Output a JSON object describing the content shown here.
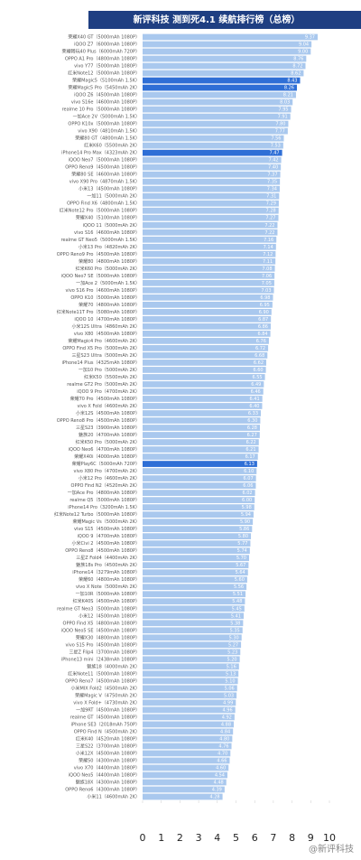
{
  "chart_data": {
    "type": "barh",
    "title": "新评科技 测到死4.1 续航排行榜（总榜）",
    "watermark": "@新评科技",
    "categories": [
      "荣耀X40 GT（5000mAh 1080P）",
      "iQOO Z7（6000mAh 1080P）",
      "荣耀畅玩40 Plus（6000mAh 720P）",
      "OPPO A1 Pro（4800mAh 1080P）",
      "vivo Y77（5000mAh 1080P）",
      "红米Note12（5000mAh 1080P）",
      "荣耀Magic5（5100mAh 1.5K）",
      "荣耀Magic5 Pro（5450mAh 2K）",
      "iQOO Z6（4500mAh 1080P）",
      "vivo S16e（4600mAh 1080P）",
      "realme 10 Pro（5000mAh 1080P）",
      "一加Ace 2V（5000mAh 1.5K）",
      "OPPO K10x（5000mAh 1080P）",
      "vivo X90（4810mAh 1.5K）",
      "荣耀80 GT（4800mAh 1.5K）",
      "红米K60（5500mAh 2K）",
      "iPhone14 Pro Max（4323mAh 2K）",
      "iQOO Neo7（5000mAh 1080P）",
      "OPPO Reno9（4500mAh 1080P）",
      "荣耀80 SE（4600mAh 1080P）",
      "vivo X90 Pro（4870mAh 1.5K）",
      "小米13（4500mAh 1080P）",
      "一加11（5000mAh 2K）",
      "OPPO Find X6（4800mAh 1.5K）",
      "红米Note12 Pro（5000mAh 1080P）",
      "荣耀X40（5100mAh 1080P）",
      "iQOO 11（5000mAh 2K）",
      "vivo S16（4600mAh 1080P）",
      "realme GT Neo5（5000mAh 1.5K）",
      "小米13 Pro（4820mAh 2K）",
      "OPPO Reno9 Pro（4500mAh 1080P）",
      "荣耀80（4800mAh 1080P）",
      "红米K60 Pro（5000mAh 2K）",
      "iQOO Neo7 SE（5000mAh 1080P）",
      "一加Ace 2（5000mAh 1.5K）",
      "vivo S16 Pro（4600mAh 1080P）",
      "OPPO K10（5000mAh 1080P）",
      "荣耀70（4800mAh 1080P）",
      "红米Note11T Pro（5080mAh 1080P）",
      "iQOO 10（4700mAh 1080P）",
      "小米12S Ultra（4860mAh 2K）",
      "vivo X80（4500mAh 1080P）",
      "荣耀Magic4 Pro（4600mAh 2K）",
      "OPPO Find X5 Pro（5000mAh 2K）",
      "三星S23 Ultra（5000mAh 2K）",
      "iPhone14 Plus（4325mAh 1080P）",
      "一加10 Pro（5000mAh 2K）",
      "红米K50（5500mAh 2K）",
      "realme GT2 Pro（5000mAh 2K）",
      "iQOO 9 Pro（4700mAh 2K）",
      "荣耀70 Pro（4500mAh 1080P）",
      "vivo X Fold（4600mAh 2K）",
      "小米12S（4500mAh 1080P）",
      "OPPO Reno8 Pro（4500mAh 1080P）",
      "三星S23（3900mAh 1080P）",
      "魅族20（4700mAh 1080P）",
      "红米K50 Pro（5000mAh 2K）",
      "iQOO Neo6（4700mAh 1080P）",
      "荣耀X40i（4000mAh 1080P）",
      "荣耀Play6C（5000mAh 720P）",
      "vivo X80 Pro（4700mAh 2K）",
      "小米12 Pro（4600mAh 2K）",
      "OPPO Find N2（4520mAh 2K）",
      "一加Ace Pro（4800mAh 1080P）",
      "realme Q5（5000mAh 1080P）",
      "iPhone14 Pro（3200mAh 1.5K）",
      "红米Note12 Turbo（5000mAh 1080P）",
      "荣耀Magic Vs（5000mAh 2K）",
      "vivo S15（4500mAh 1080P）",
      "iQOO 9（4700mAh 1080P）",
      "小米Civi 2（4500mAh 1080P）",
      "OPPO Reno8（4500mAh 1080P）",
      "三星Z Fold4（4400mAh 2K）",
      "魅族18s Pro（4500mAh 2K）",
      "iPhone14（3279mAh 1080P）",
      "荣耀60（4800mAh 1080P）",
      "vivo X Note（5000mAh 2K）",
      "一加10R（5000mAh 1080P）",
      "红米K40S（4500mAh 1080P）",
      "realme GT Neo3（5000mAh 1080P）",
      "小米12（4500mAh 1080P）",
      "OPPO Find X5（4800mAh 1080P）",
      "iQOO Neo5 SE（4500mAh 1080P）",
      "荣耀X30（4800mAh 1080P）",
      "vivo S15 Pro（4500mAh 1080P）",
      "三星Z Flip4（3700mAh 1080P）",
      "iPhone13 mini（2438mAh 1080P）",
      "魅族18（4000mAh 2K）",
      "红米Note11（5000mAh 1080P）",
      "OPPO Reno7（4500mAh 1080P）",
      "小米MIX Fold2（4500mAh 2K）",
      "荣耀Magic V（4750mAh 2K）",
      "vivo X Fold+（4730mAh 2K）",
      "一加9RT（4500mAh 1080P）",
      "realme GT（4500mAh 1080P）",
      "iPhone SE3（2018mAh 750P）",
      "OPPO Find N（4500mAh 2K）",
      "红米K40（4520mAh 1080P）",
      "三星S22（3700mAh 1080P）",
      "小米12X（4500mAh 1080P）",
      "荣耀50（4300mAh 1080P）",
      "vivo X70（4400mAh 1080P）",
      "iQOO Neo5（4400mAh 1080P）",
      "魅族18X（4300mAh 1080P）",
      "OPPO Reno6（4300mAh 1080P）",
      "小米11（4600mAh 2K）"
    ],
    "values": [
      9.37,
      9.04,
      9.0,
      8.76,
      8.72,
      8.62,
      8.43,
      8.26,
      8.21,
      8.03,
      7.95,
      7.91,
      7.8,
      7.77,
      7.56,
      7.53,
      7.47,
      7.42,
      7.4,
      7.37,
      7.35,
      7.34,
      7.31,
      7.29,
      7.28,
      7.27,
      7.22,
      7.22,
      7.16,
      7.14,
      7.12,
      7.11,
      7.08,
      7.06,
      7.05,
      7.03,
      6.98,
      6.95,
      6.9,
      6.87,
      6.86,
      6.84,
      6.76,
      6.72,
      6.68,
      6.62,
      6.6,
      6.55,
      6.49,
      6.46,
      6.41,
      6.4,
      6.33,
      6.3,
      6.28,
      6.27,
      6.22,
      6.21,
      6.17,
      6.13,
      6.1,
      6.07,
      6.06,
      6.02,
      6.0,
      5.98,
      5.94,
      5.9,
      5.86,
      5.8,
      5.77,
      5.74,
      5.7,
      5.67,
      5.64,
      5.6,
      5.56,
      5.51,
      5.48,
      5.45,
      5.41,
      5.38,
      5.35,
      5.3,
      5.27,
      5.23,
      5.2,
      5.16,
      5.13,
      5.1,
      5.06,
      5.03,
      4.99,
      4.96,
      4.92,
      4.88,
      4.84,
      4.8,
      4.76,
      4.7,
      4.66,
      4.6,
      4.54,
      4.48,
      4.39,
      4.28
    ],
    "value_labels": [
      "9.37",
      "9.04",
      "9.00",
      "8.76",
      "8.72",
      "8.62",
      "8.43",
      "8.26",
      "8.21",
      "8.03",
      "7.95",
      "7.91",
      "7.80",
      "7.77",
      "7.56",
      "7.53",
      "7.47",
      "7.42",
      "7.40",
      "7.37",
      "7.35",
      "7.34",
      "7.31",
      "7.29",
      "7.28",
      "7.27",
      "7.22",
      "7.22",
      "7.16",
      "7.14",
      "7.12",
      "7.11",
      "7.08",
      "7.06",
      "7.05",
      "7.03",
      "6.98",
      "6.95",
      "6.90",
      "6.87",
      "6.86",
      "6.84",
      "6.76",
      "6.72",
      "6.68",
      "6.62",
      "6.60",
      "6.55",
      "6.49",
      "6.46",
      "6.41",
      "6.40",
      "6.33",
      "6.30",
      "6.28",
      "6.27",
      "6.22",
      "6.21",
      "6.17",
      "6.13",
      "6.10",
      "6.07",
      "6.06",
      "6.02",
      "6.00",
      "5.98",
      "5.94",
      "5.90",
      "5.86",
      "5.80",
      "5.77",
      "5.74",
      "5.70",
      "5.67",
      "5.64",
      "5.60",
      "5.56",
      "5.51",
      "5.48",
      "5.45",
      "5.41",
      "5.38",
      "5.35",
      "5.30",
      "5.27",
      "5.23",
      "5.20",
      "5.16",
      "5.13",
      "5.10",
      "5.06",
      "5.03",
      "4.99",
      "4.96",
      "4.92",
      "4.88",
      "4.84",
      "4.80",
      "4.76",
      "4.70",
      "4.66",
      "4.60",
      "4.54",
      "4.48",
      "4.39",
      "4.28"
    ],
    "color": "#a9c8ee",
    "highlight_color": "#2f6fd6",
    "highlighted": [
      6,
      7,
      16,
      59
    ],
    "xlim": [
      0,
      10
    ],
    "xticks": [
      0,
      1,
      2,
      3,
      4,
      5,
      6,
      7,
      8,
      9,
      10
    ]
  }
}
